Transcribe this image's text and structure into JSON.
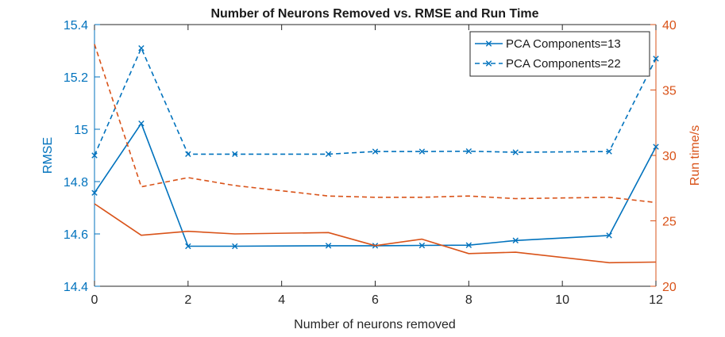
{
  "chart_data": {
    "type": "line",
    "title": "Number of Neurons Removed vs. RMSE and Run Time",
    "xlabel": "Number of neurons removed",
    "ylabel_left": "RMSE",
    "ylabel_right": "Run time/s",
    "xlim": [
      0,
      12
    ],
    "ylim_left": [
      14.4,
      15.4
    ],
    "ylim_right": [
      20,
      40
    ],
    "x_ticks": [
      "0",
      "2",
      "4",
      "6",
      "8",
      "10",
      "12"
    ],
    "y_left_ticks": [
      "14.4",
      "14.6",
      "14.8",
      "15",
      "15.2",
      "15.4"
    ],
    "y_right_ticks": [
      "20",
      "25",
      "30",
      "35",
      "40"
    ],
    "grid": false,
    "legend_location": "top-right",
    "colors": {
      "rmse": "#0072BD",
      "runtime": "#D95319",
      "axis": "#262626"
    },
    "series": [
      {
        "name": "PCA Components=13",
        "axis": "left",
        "style": "solid",
        "marker": "x",
        "x": [
          0,
          1,
          2,
          3,
          5,
          6,
          7,
          8,
          9,
          11,
          12
        ],
        "y": [
          14.757,
          15.022,
          14.553,
          14.553,
          14.555,
          14.555,
          14.556,
          14.557,
          14.575,
          14.594,
          14.933
        ]
      },
      {
        "name": "PCA Components=22",
        "axis": "left",
        "style": "dashed",
        "marker": "x",
        "x": [
          0,
          1,
          2,
          3,
          5,
          6,
          7,
          8,
          9,
          11,
          12
        ],
        "y": [
          14.9,
          15.31,
          14.905,
          14.905,
          14.905,
          14.915,
          14.915,
          14.916,
          14.912,
          14.915,
          15.27
        ]
      },
      {
        "axis": "right",
        "style": "solid",
        "x": [
          0,
          1,
          2,
          3,
          5,
          6,
          7,
          8,
          9,
          11,
          12
        ],
        "y": [
          26.3,
          23.9,
          24.2,
          24.0,
          24.1,
          23.1,
          23.6,
          22.5,
          22.6,
          21.8,
          21.85
        ]
      },
      {
        "axis": "right",
        "style": "dashed",
        "x": [
          0,
          1,
          2,
          3,
          5,
          6,
          7,
          8,
          9,
          11,
          12
        ],
        "y": [
          38.5,
          27.6,
          28.3,
          27.7,
          26.9,
          26.8,
          26.8,
          26.9,
          26.7,
          26.8,
          26.4
        ]
      }
    ]
  }
}
